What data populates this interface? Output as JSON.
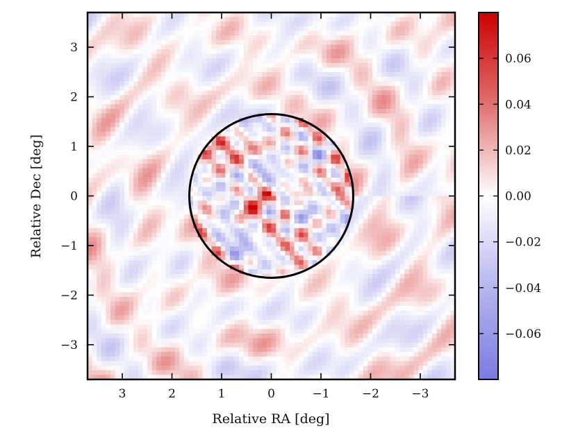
{
  "chart_data": {
    "type": "heatmap",
    "title": "",
    "xlabel": "Relative RA [deg]",
    "ylabel": "Relative Dec [deg]",
    "xlim": [
      3.7,
      -3.7
    ],
    "ylim": [
      -3.7,
      3.7
    ],
    "x_ticks": [
      3,
      2,
      1,
      0,
      -1,
      -2,
      -3
    ],
    "x_tick_labels": [
      "3",
      "2",
      "1",
      "0",
      "−1",
      "−2",
      "−3"
    ],
    "y_ticks": [
      3,
      2,
      1,
      0,
      -1,
      -2,
      -3
    ],
    "y_tick_labels": [
      "3",
      "2",
      "1",
      "0",
      "−1",
      "−2",
      "−3"
    ],
    "colorbar": {
      "range": [
        -0.08,
        0.08
      ],
      "ticks": [
        0.06,
        0.04,
        0.02,
        0.0,
        -0.02,
        -0.04,
        -0.06
      ],
      "tick_labels": [
        "0.06",
        "0.04",
        "0.02",
        "0.00",
        "−0.02",
        "−0.04",
        "−0.06"
      ],
      "colormap": "blue-white-red",
      "low_color": "#7b7be0",
      "mid_color": "#ffffff",
      "high_color": "#cc0000"
    },
    "circle": {
      "center": [
        0,
        0
      ],
      "radius_deg": 1.65,
      "color": "#000000"
    },
    "field_description_visible_only": "noise field; inner disk has stronger fluctuations up to about 0.07, outer region weaker ring-like structure around ±0.02"
  }
}
